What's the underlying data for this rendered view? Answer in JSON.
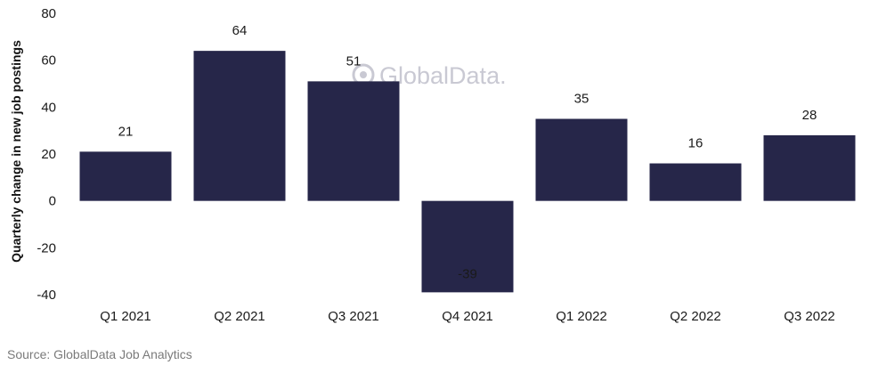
{
  "chart_data": {
    "type": "bar",
    "categories": [
      "Q1 2021",
      "Q2 2021",
      "Q3 2021",
      "Q4 2021",
      "Q1 2022",
      "Q2 2022",
      "Q3 2022"
    ],
    "values": [
      21,
      64,
      51,
      -39,
      35,
      16,
      28
    ],
    "xlabel": "",
    "ylabel": "Quarterly change in new job postings",
    "ylim": [
      -40,
      80
    ],
    "yticks": [
      80,
      60,
      40,
      20,
      0,
      -20,
      -40
    ],
    "grid": false,
    "legend": "none",
    "bar_color": "#262649"
  },
  "watermark": "GlobalData.",
  "source": "Source: GlobalData Job Analytics"
}
